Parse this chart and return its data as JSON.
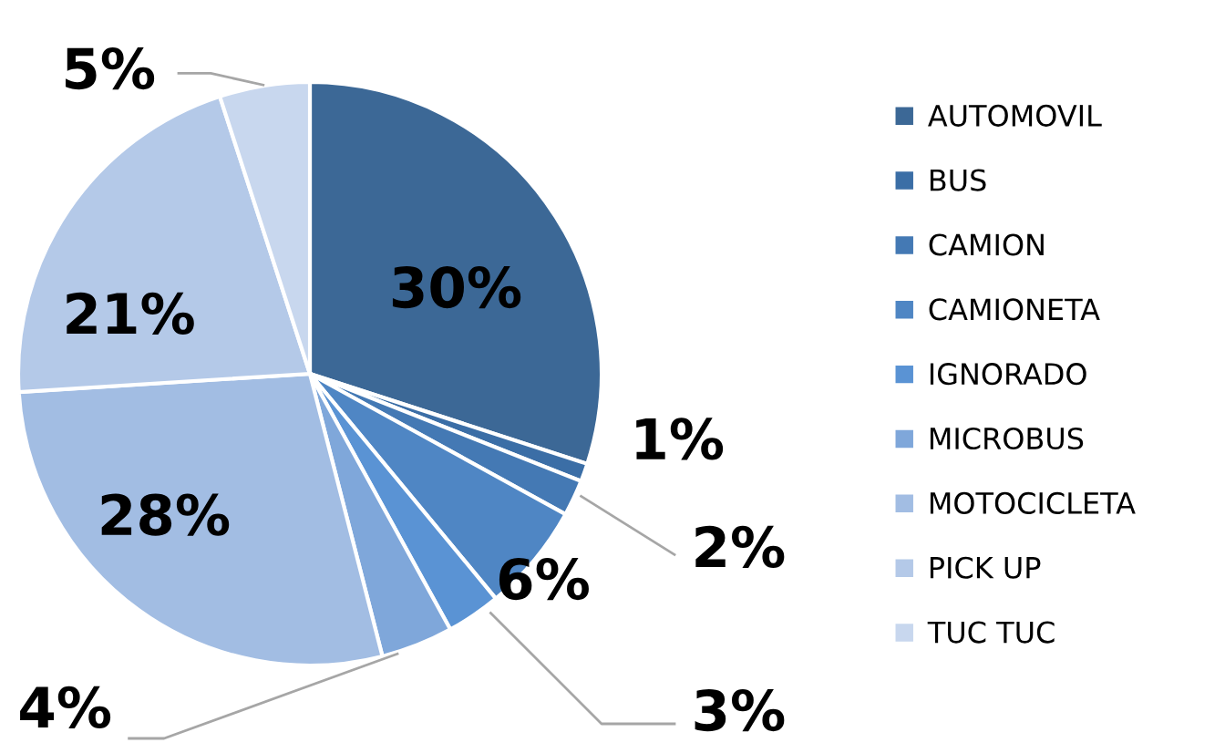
{
  "chart_data": {
    "type": "pie",
    "categories": [
      "AUTOMOVIL",
      "BUS",
      "CAMION",
      "CAMIONETA",
      "IGNORADO",
      "MICROBUS",
      "MOTOCICLETA",
      "PICK UP",
      "TUC TUC"
    ],
    "values": [
      30,
      1,
      2,
      6,
      3,
      4,
      28,
      21,
      5
    ],
    "colors": [
      "#3c6896",
      "#3b6ea6",
      "#4479b4",
      "#4f86c4",
      "#5a93d4",
      "#7fa7da",
      "#a2bde3",
      "#b4c9e8",
      "#c8d7ee"
    ],
    "value_labels": [
      "30%",
      "1%",
      "2%",
      "6%",
      "3%",
      "4%",
      "28%",
      "21%",
      "5%"
    ],
    "legend": "right"
  }
}
